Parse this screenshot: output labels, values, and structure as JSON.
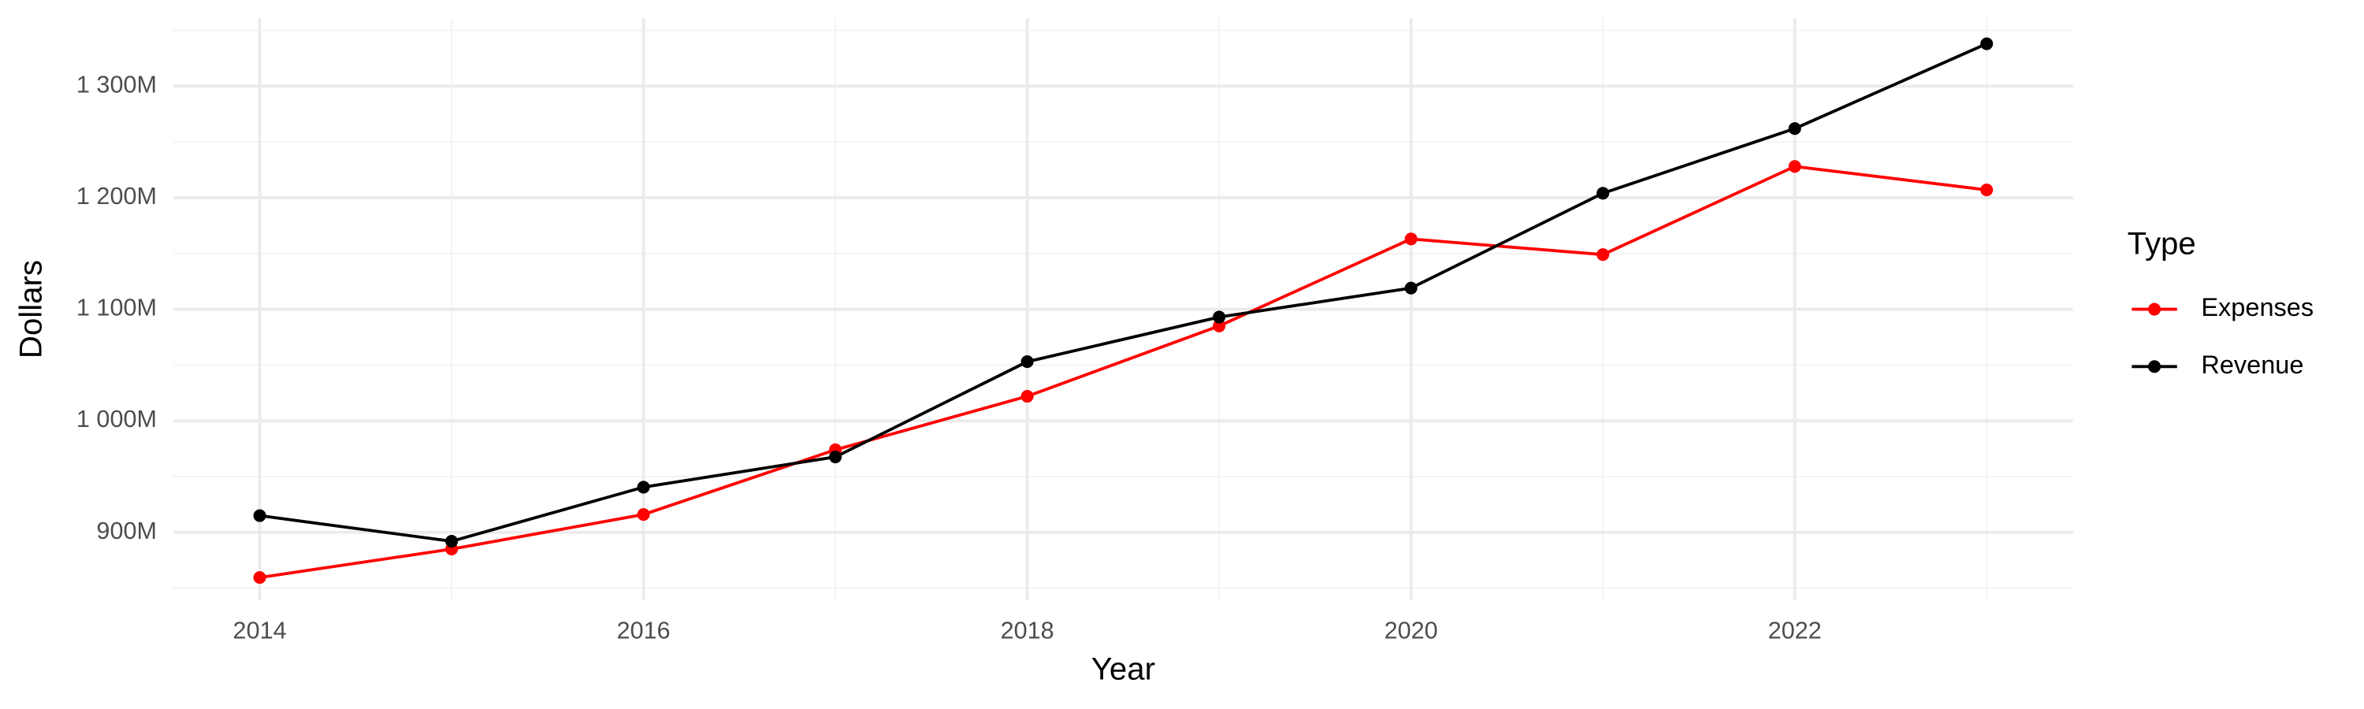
{
  "chart_data": {
    "type": "line",
    "x_label": "Year",
    "y_label": "Dollars",
    "legend_title": "Type",
    "x": [
      2014,
      2015,
      2016,
      2017,
      2018,
      2019,
      2020,
      2021,
      2022,
      2023
    ],
    "series": [
      {
        "name": "Expenses",
        "color": "#ff0000",
        "values": [
          859500000,
          885000000,
          916000000,
          974000000,
          1022000000,
          1085000000,
          1163000000,
          1149000000,
          1228000000,
          1207000000
        ]
      },
      {
        "name": "Revenue",
        "color": "#000000",
        "values": [
          915000000,
          892000000,
          940500000,
          967600000,
          1053000000,
          1093000000,
          1119000000,
          1204000000,
          1262000000,
          1338000000
        ]
      }
    ],
    "xlim": [
      2013.55,
      2023.45
    ],
    "xticks": [
      2014,
      2016,
      2018,
      2020,
      2022
    ],
    "ylim": [
      839000000,
      1361000000
    ],
    "yticks": [
      {
        "value": 900000000,
        "label": "900M"
      },
      {
        "value": 1000000000,
        "label": "1 000M"
      },
      {
        "value": 1100000000,
        "label": "1 100M"
      },
      {
        "value": 1200000000,
        "label": "1 200M"
      },
      {
        "value": 1300000000,
        "label": "1 300M"
      }
    ],
    "grid": true,
    "legend_position": "right"
  }
}
